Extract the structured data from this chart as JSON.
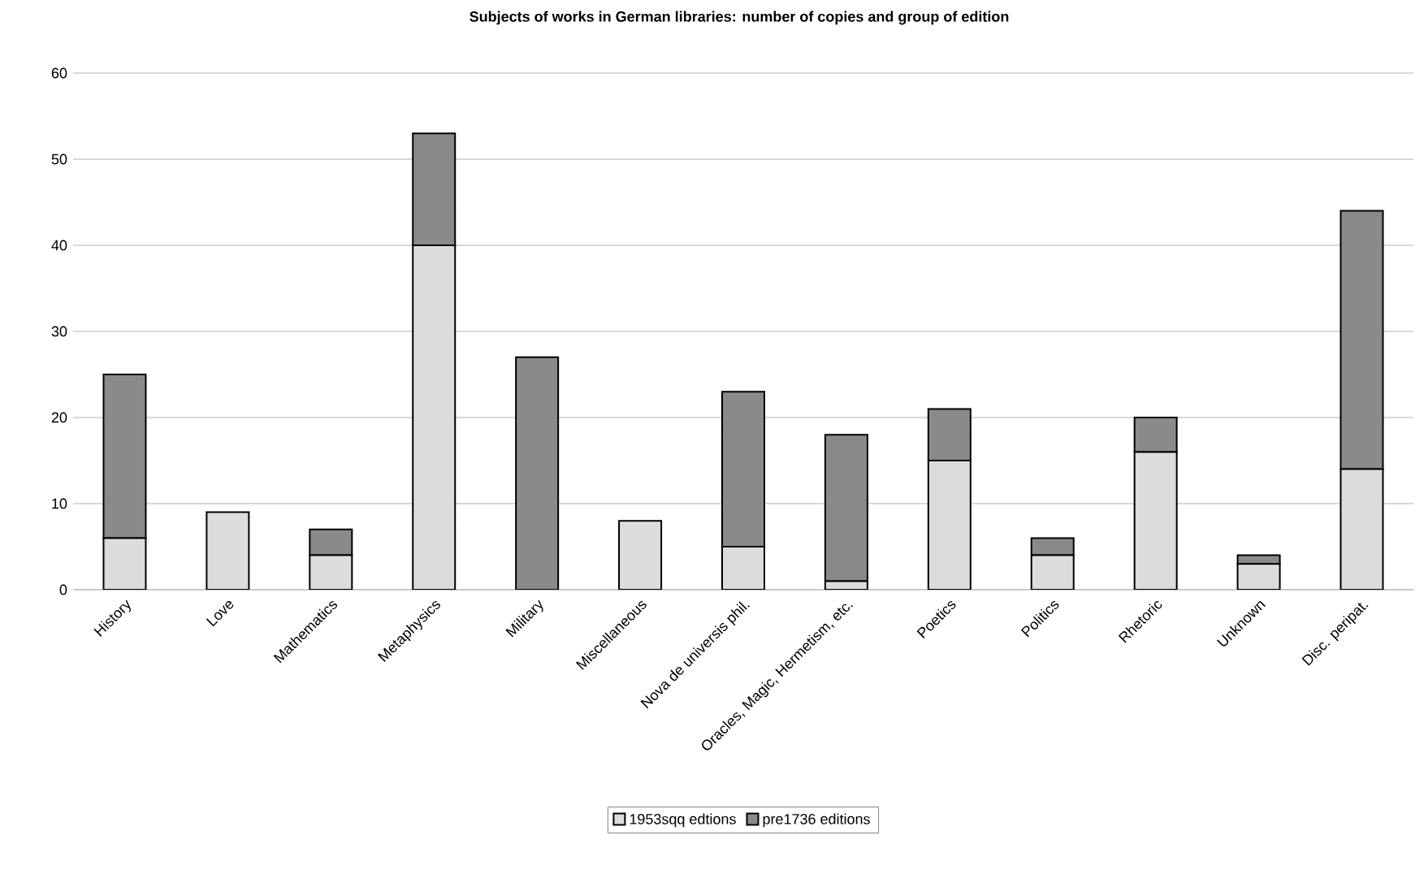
{
  "chart_data": {
    "type": "bar",
    "title": "Subjects of works in German libraries: number of copies and group of edition",
    "categories": [
      "History",
      "Love",
      "Mathematics",
      "Metaphysics",
      "Military",
      "Miscellaneous",
      "Nova de universis phil.",
      "Oracles, Magic, Hermetism, etc.",
      "Poetics",
      "Politics",
      "Rhetoric",
      "Unknown",
      "Disc. peripat."
    ],
    "series": [
      {
        "name": "1953sqq edtions",
        "color": "#dcdcdc",
        "values": [
          6,
          9,
          4,
          40,
          0,
          8,
          5,
          1,
          15,
          4,
          16,
          3,
          14
        ]
      },
      {
        "name": "pre1736 editions",
        "color": "#8a8a8a",
        "values": [
          19,
          0,
          3,
          13,
          27,
          0,
          18,
          17,
          6,
          2,
          4,
          1,
          30
        ]
      }
    ],
    "stacked": true,
    "ylim": [
      0,
      60
    ],
    "yticks": [
      0,
      10,
      20,
      30,
      40,
      50,
      60
    ],
    "grid": "y",
    "legend": "bottom"
  }
}
